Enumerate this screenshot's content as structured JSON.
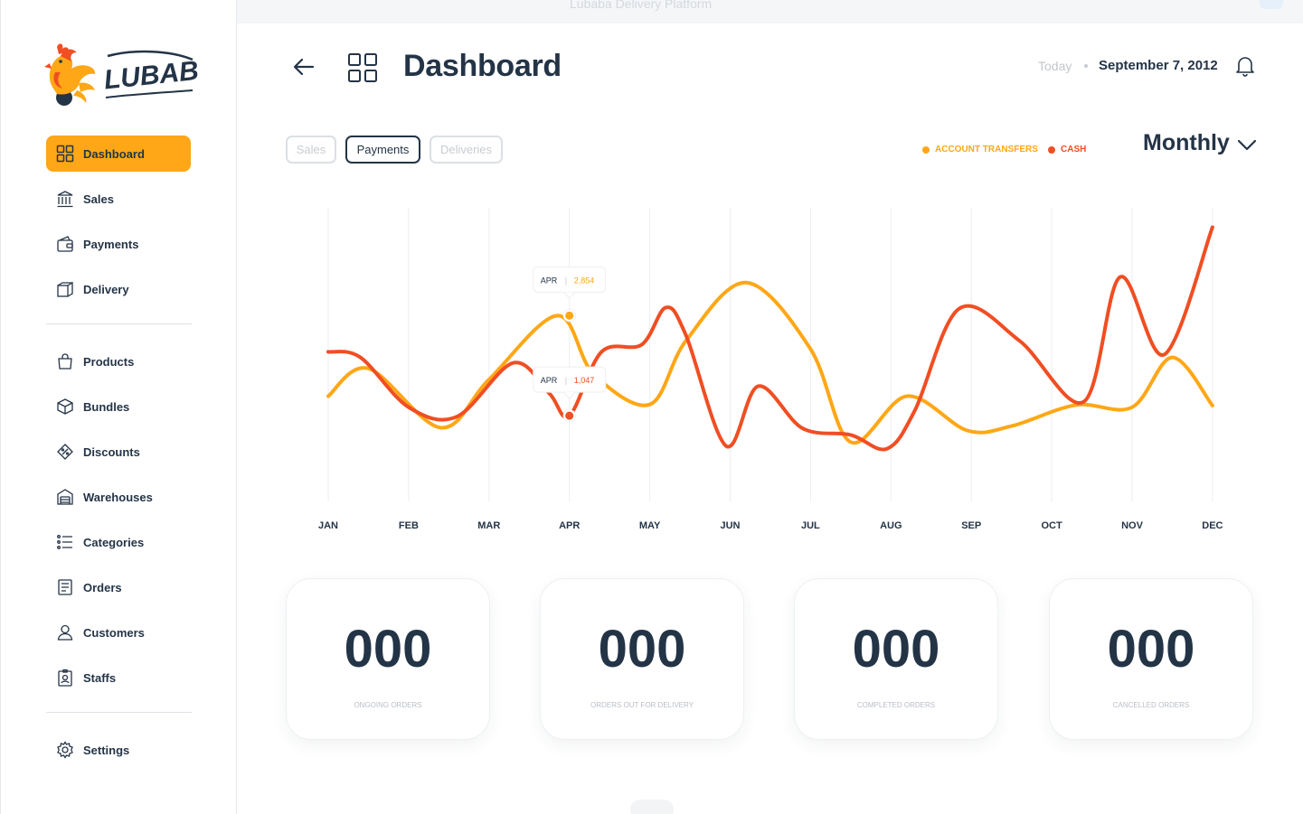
{
  "window": {
    "title": "Lubaba Delivery Platform"
  },
  "brand": {
    "name": "LUBABA"
  },
  "sidebar": {
    "items": [
      {
        "key": "dashboard",
        "label": "Dashboard",
        "icon": "dashboard-grid-icon",
        "active": true
      },
      {
        "key": "sales",
        "label": "Sales",
        "icon": "bank-icon"
      },
      {
        "key": "payments",
        "label": "Payments",
        "icon": "wallet-icon"
      },
      {
        "key": "delivery",
        "label": "Delivery",
        "icon": "delivery-box-icon"
      },
      {
        "key": "products",
        "label": "Products",
        "icon": "shopping-bag-icon"
      },
      {
        "key": "bundles",
        "label": "Bundles",
        "icon": "package-icon"
      },
      {
        "key": "discounts",
        "label": "Discounts",
        "icon": "discount-tag-icon"
      },
      {
        "key": "warehouses",
        "label": "Warehouses",
        "icon": "warehouse-icon"
      },
      {
        "key": "categories",
        "label": "Categories",
        "icon": "list-icon"
      },
      {
        "key": "orders",
        "label": "Orders",
        "icon": "orders-icon"
      },
      {
        "key": "customers",
        "label": "Customers",
        "icon": "user-icon"
      },
      {
        "key": "staffs",
        "label": "Staffs",
        "icon": "id-badge-icon"
      },
      {
        "key": "settings",
        "label": "Settings",
        "icon": "gear-icon"
      }
    ]
  },
  "header": {
    "title": "Dashboard",
    "today_label": "Today",
    "date": "September 7, 2012"
  },
  "tabs": [
    {
      "label": "Sales",
      "active": false
    },
    {
      "label": "Payments",
      "active": true
    },
    {
      "label": "Deliveries",
      "active": false
    }
  ],
  "period": {
    "selected": "Monthly"
  },
  "colors": {
    "accent": "#FFA716",
    "account_transfers": "#FFA716",
    "cash": "#F04E23",
    "text": "#243447"
  },
  "chart_data": {
    "type": "line",
    "categories": [
      "JAN",
      "FEB",
      "MAR",
      "APR",
      "MAY",
      "JUN",
      "JUL",
      "AUG",
      "SEP",
      "OCT",
      "NOV",
      "DEC"
    ],
    "legend_placement": "top-right",
    "grid": "vertical",
    "series": [
      {
        "name": "ACCOUNT TRANSFERS",
        "color": "#FFA716",
        "points": [
          [
            0,
            1400
          ],
          [
            0.5,
            1900
          ],
          [
            1.4,
            830
          ],
          [
            2,
            1700
          ],
          [
            2.85,
            2854
          ],
          [
            3.3,
            1800
          ],
          [
            4,
            1250
          ],
          [
            4.45,
            2400
          ],
          [
            5.2,
            3450
          ],
          [
            6.0,
            2250
          ],
          [
            6.5,
            570
          ],
          [
            7.2,
            1400
          ],
          [
            7.95,
            780
          ],
          [
            8.5,
            860
          ],
          [
            9.3,
            1240
          ],
          [
            10,
            1200
          ],
          [
            10.5,
            2100
          ],
          [
            11,
            1230
          ]
        ]
      },
      {
        "name": "CASH",
        "color": "#F04E23",
        "points": [
          [
            0,
            2200
          ],
          [
            0.4,
            2100
          ],
          [
            1,
            1200
          ],
          [
            1.6,
            1030
          ],
          [
            2.3,
            2000
          ],
          [
            2.75,
            1450
          ],
          [
            3,
            1047
          ],
          [
            3.4,
            2200
          ],
          [
            3.9,
            2330
          ],
          [
            4.2,
            3000
          ],
          [
            4.45,
            2500
          ],
          [
            4.95,
            500
          ],
          [
            5.35,
            1580
          ],
          [
            5.9,
            820
          ],
          [
            6.5,
            700
          ],
          [
            6.95,
            450
          ],
          [
            7.3,
            1150
          ],
          [
            7.85,
            2980
          ],
          [
            8.6,
            2400
          ],
          [
            9.4,
            1300
          ],
          [
            9.85,
            3550
          ],
          [
            10.4,
            2150
          ],
          [
            11,
            4450
          ]
        ]
      }
    ],
    "highlight": {
      "category": "APR",
      "labels": [
        {
          "series": "ACCOUNT TRANSFERS",
          "value": "2,854"
        },
        {
          "series": "CASH",
          "value": "1,047"
        }
      ]
    },
    "ylim": [
      -500,
      4800
    ]
  },
  "stats": [
    {
      "value": "000",
      "caption": "ONGOING ORDERS"
    },
    {
      "value": "000",
      "caption": "ORDERS OUT FOR DELIVERY"
    },
    {
      "value": "000",
      "caption": "COMPLETED ORDERS"
    },
    {
      "value": "000",
      "caption": "CANCELLED ORDERS"
    }
  ]
}
